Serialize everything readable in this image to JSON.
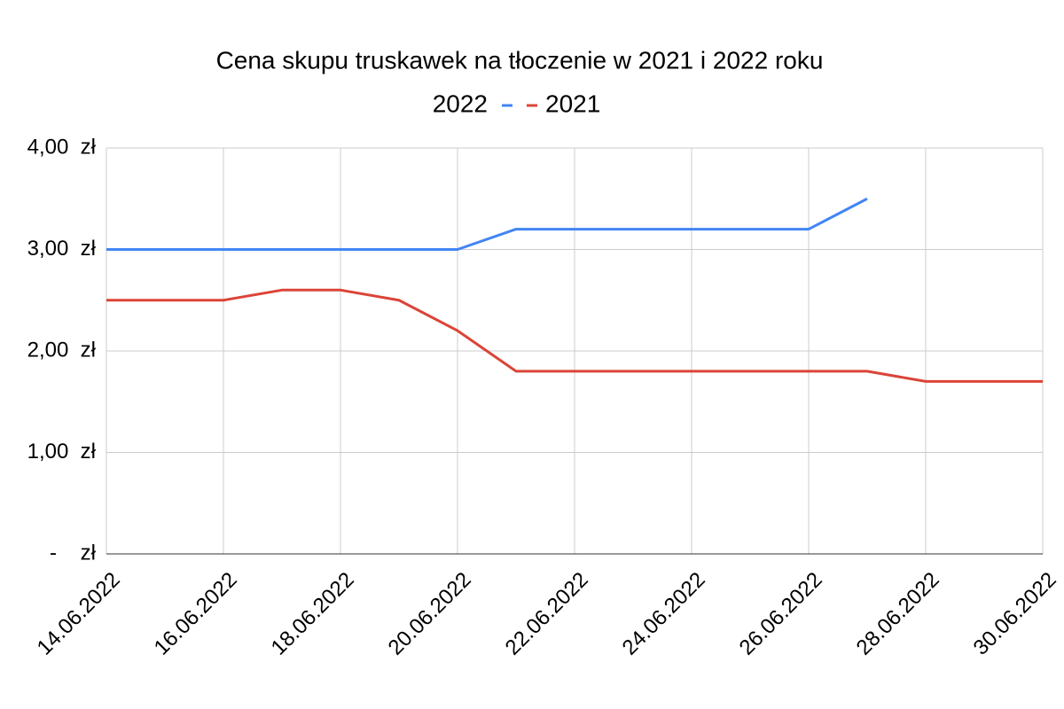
{
  "chart_data": {
    "type": "line",
    "title": "Cena skupu truskawek na tłoczenie w 2021 i 2022 roku",
    "categories": [
      "14.06.2022",
      null,
      "16.06.2022",
      null,
      "18.06.2022",
      null,
      "20.06.2022",
      null,
      "22.06.2022",
      null,
      "24.06.2022",
      null,
      "26.06.2022",
      null,
      "28.06.2022",
      null,
      "30.06.2022"
    ],
    "series": [
      {
        "name": "2022",
        "color": "#4285f4",
        "values": [
          3,
          3,
          3,
          3,
          3,
          3,
          3,
          3.2,
          3.2,
          3.2,
          3.2,
          3.2,
          3.2,
          3.5,
          null,
          null,
          null
        ]
      },
      {
        "name": "2021",
        "color": "#db4437",
        "values": [
          2.5,
          2.5,
          2.5,
          2.6,
          2.6,
          2.5,
          2.2,
          1.8,
          1.8,
          1.8,
          1.8,
          1.8,
          1.8,
          1.8,
          1.7,
          1.7,
          1.7
        ]
      }
    ],
    "ylim": [
      0,
      4
    ],
    "yticks": [
      {
        "value": 0,
        "label": "-    zł"
      },
      {
        "value": 1,
        "label": "1,00  zł"
      },
      {
        "value": 2,
        "label": "2,00  zł"
      },
      {
        "value": 3,
        "label": "3,00  zł"
      },
      {
        "value": 4,
        "label": "4,00  zł"
      }
    ],
    "grid": true,
    "legend": "top"
  }
}
